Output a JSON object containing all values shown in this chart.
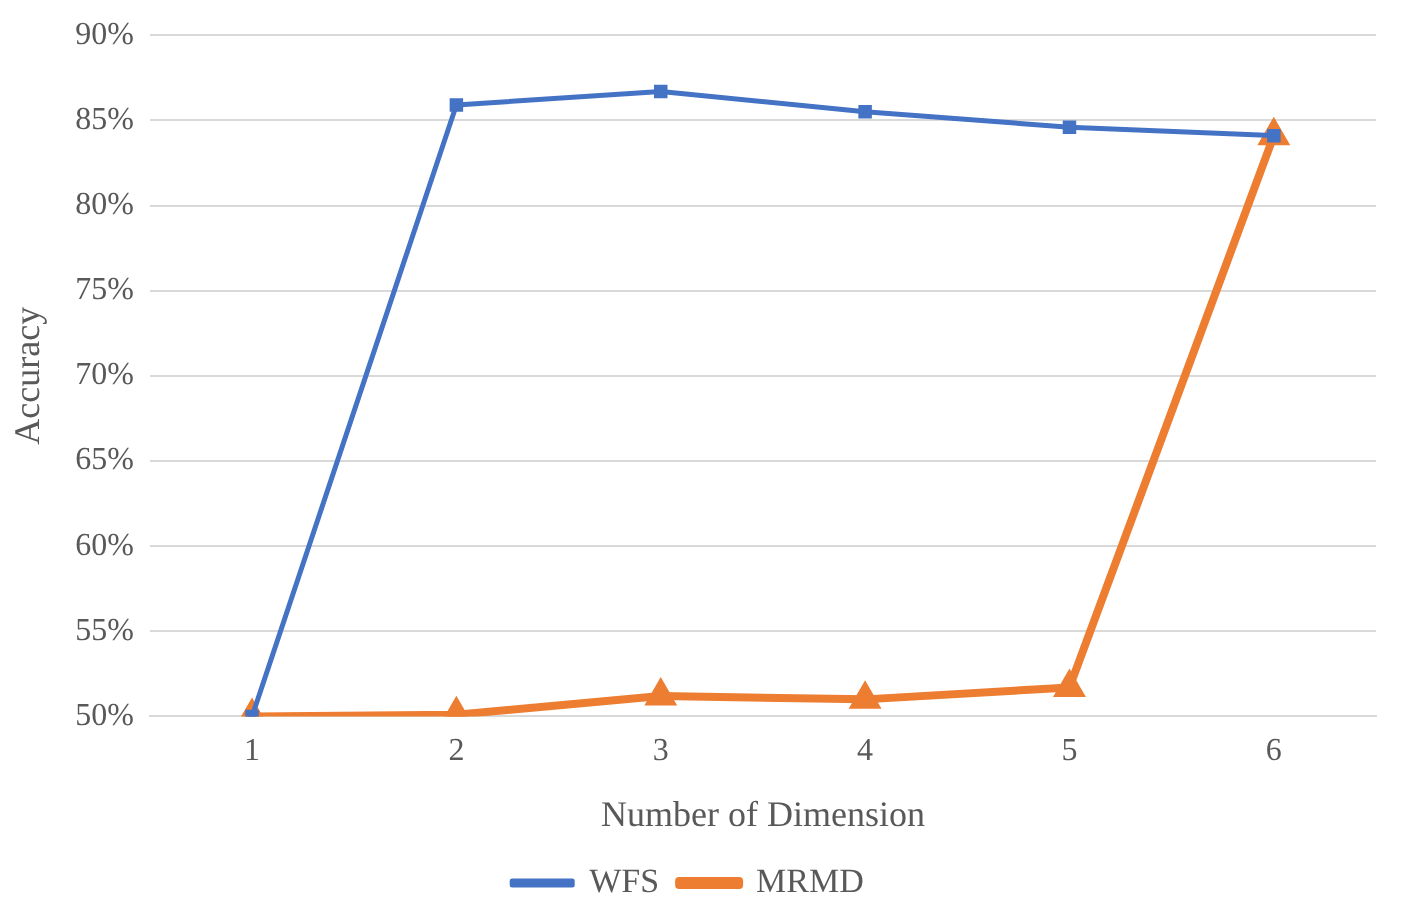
{
  "chart_data": {
    "type": "line",
    "xlabel": "Number of Dimension",
    "ylabel": "Accuracy",
    "categories": [
      "1",
      "2",
      "3",
      "4",
      "5",
      "6"
    ],
    "series": [
      {
        "name": "WFS",
        "color": "#4472c4",
        "marker": "square",
        "values": [
          50,
          85.9,
          86.7,
          85.5,
          84.6,
          84.1
        ]
      },
      {
        "name": "MRMD",
        "color": "#ed7d31",
        "marker": "triangle",
        "values": [
          50,
          50.1,
          51.2,
          51.0,
          51.7,
          84.1
        ]
      }
    ],
    "ylim": [
      50,
      90
    ],
    "yticks": [
      {
        "value": 50,
        "label": "50%"
      },
      {
        "value": 55,
        "label": "55%"
      },
      {
        "value": 60,
        "label": "60%"
      },
      {
        "value": 65,
        "label": "65%"
      },
      {
        "value": 70,
        "label": "70%"
      },
      {
        "value": 75,
        "label": "75%"
      },
      {
        "value": 80,
        "label": "80%"
      },
      {
        "value": 85,
        "label": "85%"
      },
      {
        "value": 90,
        "label": "90%"
      }
    ],
    "grid": "y",
    "legend": "bottom",
    "line_style": "solid"
  }
}
